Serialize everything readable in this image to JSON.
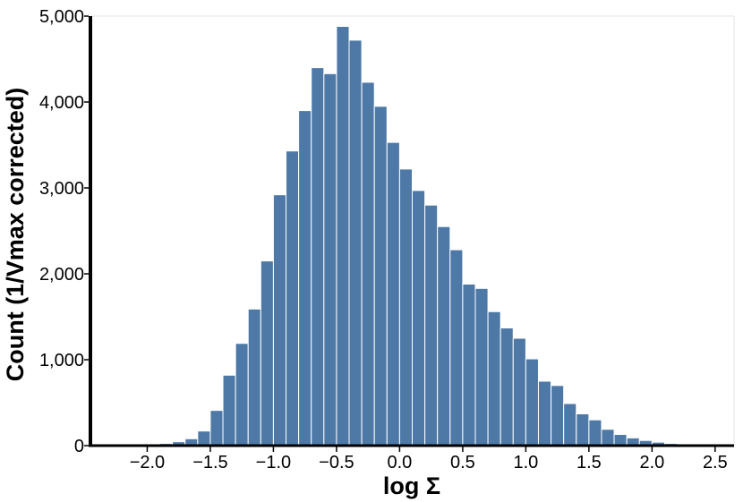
{
  "chart_data": {
    "type": "bar",
    "title": "",
    "xlabel": "log Σ",
    "ylabel": "Count (1/Vmax corrected)",
    "xlim": [
      -2.45,
      2.65
    ],
    "ylim": [
      0,
      5000
    ],
    "grid": false,
    "legend": "none",
    "bar_color": "#4e79a7",
    "bin_width": 0.1,
    "bin_starts": [
      -2.4,
      -2.3,
      -2.2,
      -2.1,
      -2.0,
      -1.9,
      -1.8,
      -1.7,
      -1.6,
      -1.5,
      -1.4,
      -1.3,
      -1.2,
      -1.1,
      -1.0,
      -0.9,
      -0.8,
      -0.7,
      -0.6,
      -0.5,
      -0.4,
      -0.3,
      -0.2,
      -0.1,
      0.0,
      0.1,
      0.2,
      0.3,
      0.4,
      0.5,
      0.6,
      0.7,
      0.8,
      0.9,
      1.0,
      1.1,
      1.2,
      1.3,
      1.4,
      1.5,
      1.6,
      1.7,
      1.8,
      1.9,
      2.0,
      2.1,
      2.2,
      2.3,
      2.4,
      2.5
    ],
    "values": [
      5,
      5,
      8,
      10,
      15,
      25,
      45,
      80,
      170,
      410,
      820,
      1190,
      1590,
      2150,
      2920,
      3430,
      3900,
      4400,
      4330,
      4880,
      4720,
      4230,
      3950,
      3530,
      3220,
      2970,
      2800,
      2550,
      2280,
      1880,
      1830,
      1560,
      1370,
      1250,
      1010,
      750,
      700,
      490,
      370,
      300,
      190,
      130,
      90,
      60,
      40,
      25,
      15,
      10,
      8,
      5
    ],
    "x_ticks": [
      -2.0,
      -1.5,
      -1.0,
      -0.5,
      0.0,
      0.5,
      1.0,
      1.5,
      2.0,
      2.5
    ],
    "x_tick_labels": [
      "−2.0",
      "−1.5",
      "−1.0",
      "−0.5",
      "0.0",
      "0.5",
      "1.0",
      "1.5",
      "2.0",
      "2.5"
    ],
    "y_ticks": [
      0,
      1000,
      2000,
      3000,
      4000,
      5000
    ],
    "y_tick_labels": [
      "0",
      "1,000",
      "2,000",
      "3,000",
      "4,000",
      "5,000"
    ]
  }
}
